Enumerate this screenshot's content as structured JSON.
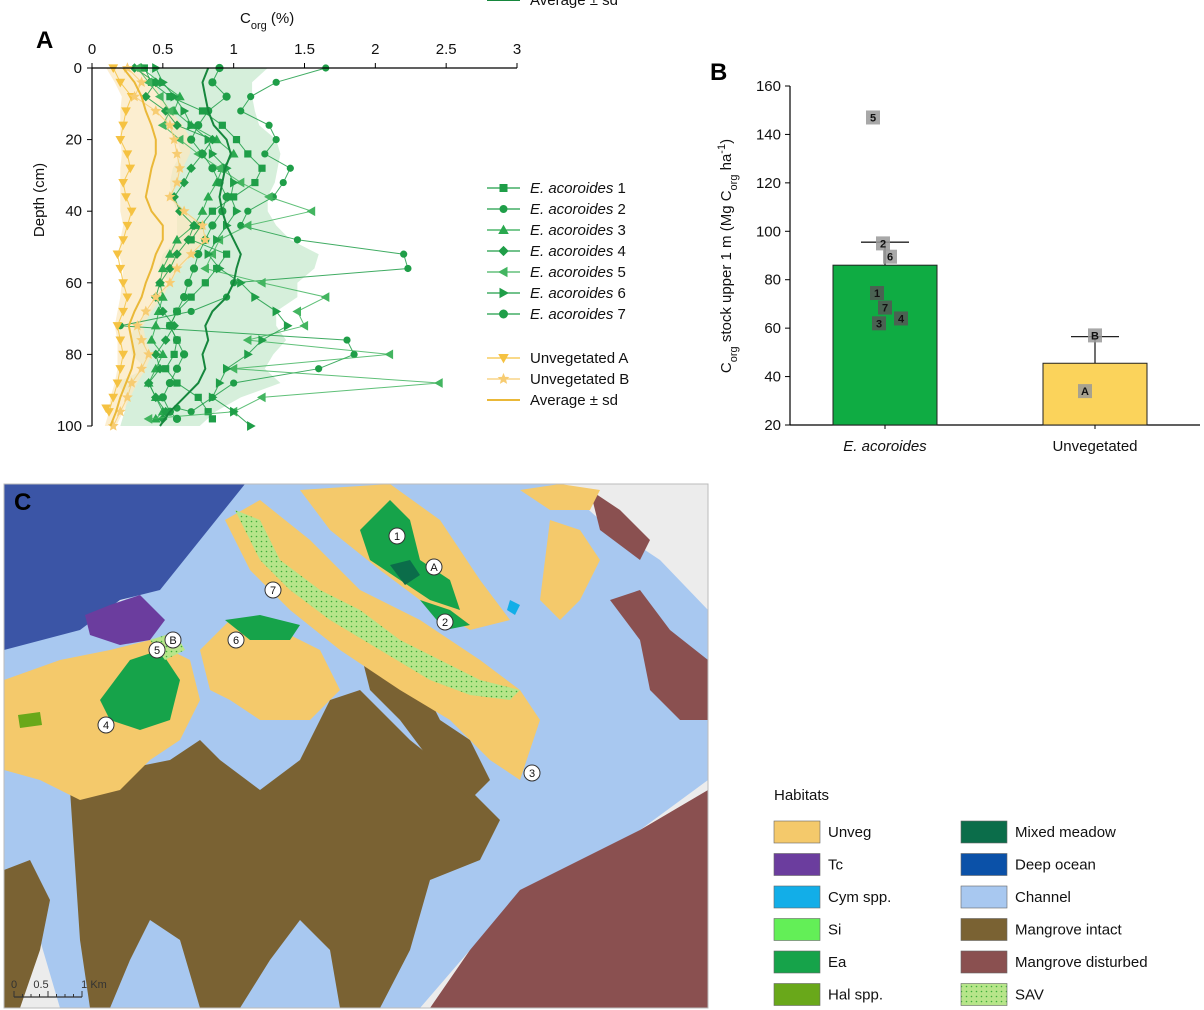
{
  "panels": {
    "a": "A",
    "b": "B",
    "c": "C"
  },
  "chart_data": [
    {
      "type": "line",
      "panel": "A",
      "title": "",
      "xlabel_main": "C",
      "xlabel_sub": "org",
      "xlabel_unit": " (%)",
      "ylabel": "Depth (cm)",
      "xlim": [
        0,
        3
      ],
      "ylim": [
        0,
        100
      ],
      "xticks": [
        "0",
        "0.5",
        "1",
        "1.5",
        "2",
        "2.5",
        "3"
      ],
      "yticks": [
        "0",
        "20",
        "40",
        "60",
        "80",
        "100"
      ],
      "depths": [
        0,
        4,
        8,
        12,
        16,
        20,
        24,
        28,
        32,
        36,
        40,
        44,
        48,
        52,
        56,
        60,
        64,
        68,
        72,
        76,
        80,
        84,
        88,
        92,
        96,
        100
      ],
      "series": [
        {
          "name": "E. acoroides",
          "num": "1",
          "marker": "square",
          "color": "#1f9e48",
          "depth_max": 98,
          "values": [
            0.37,
            0.42,
            0.55,
            0.78,
            0.92,
            1.02,
            1.1,
            1.2,
            1.15,
            1.0,
            0.85,
            0.77,
            0.7,
            0.95,
            0.88,
            0.8,
            0.7,
            0.6,
            0.55,
            0.6,
            0.58,
            0.52,
            0.6,
            0.75,
            0.82,
            0.85
          ]
        },
        {
          "name": "E. acoroides",
          "num": "2",
          "marker": "circle",
          "color": "#1f9e48",
          "depth_max": 95,
          "values": [
            1.65,
            1.3,
            1.12,
            1.05,
            1.25,
            1.3,
            1.22,
            1.4,
            1.35,
            1.28,
            1.1,
            1.05,
            1.45,
            2.2,
            2.23,
            1.0,
            0.95,
            0.7,
            0.2,
            1.8,
            1.85,
            1.6,
            1.0,
            0.85,
            0.7,
            0.6
          ]
        },
        {
          "name": "E. acoroides",
          "num": "3",
          "marker": "triangle",
          "color": "#2aa94f",
          "depth_max": 98,
          "values": [
            0.35,
            0.48,
            0.62,
            0.58,
            0.7,
            0.88,
            1.0,
            0.92,
            0.88,
            0.82,
            0.78,
            0.72,
            0.6,
            0.55,
            0.5,
            0.48,
            0.5,
            0.47,
            0.45,
            0.42,
            0.5,
            0.45,
            0.4,
            0.45,
            0.5,
            0.45
          ]
        },
        {
          "name": "E. acoroides",
          "num": "4",
          "marker": "diamond",
          "color": "#1f9e48",
          "depth_max": 98,
          "values": [
            0.3,
            0.45,
            0.38,
            0.52,
            0.6,
            0.85,
            0.78,
            0.7,
            0.65,
            0.58,
            0.62,
            0.72,
            0.68,
            0.6,
            0.55,
            0.48,
            0.45,
            0.5,
            0.58,
            0.52,
            0.45,
            0.48,
            0.4,
            0.45,
            0.52,
            0.5
          ]
        },
        {
          "name": "E. acoroides",
          "num": "5",
          "marker": "triangle-left",
          "color": "#43b560",
          "depth_max": 98,
          "values": [
            0.32,
            0.4,
            0.48,
            0.55,
            0.5,
            0.62,
            0.75,
            0.9,
            1.05,
            1.25,
            1.55,
            1.1,
            0.9,
            0.85,
            0.8,
            1.2,
            1.65,
            1.45,
            1.5,
            1.1,
            2.1,
            1.0,
            2.45,
            1.2,
            1.0,
            0.4
          ]
        },
        {
          "name": "E. acoroides",
          "num": "6",
          "marker": "triangle-right",
          "color": "#1f9e48",
          "depth_max": 100,
          "values": [
            0.45,
            0.5,
            0.58,
            0.65,
            0.7,
            0.82,
            0.85,
            0.95,
            1.0,
            0.98,
            1.02,
            0.95,
            0.88,
            0.82,
            0.9,
            1.05,
            1.15,
            1.3,
            1.38,
            1.2,
            1.1,
            0.95,
            0.9,
            0.85,
            1.0,
            1.12
          ]
        },
        {
          "name": "E. acoroides",
          "num": "7",
          "marker": "pentagon",
          "color": "#1f9e48",
          "depth_max": 98,
          "values": [
            0.9,
            0.85,
            0.95,
            0.82,
            0.75,
            0.7,
            0.78,
            0.85,
            0.9,
            0.95,
            0.92,
            0.85,
            0.8,
            0.75,
            0.72,
            0.68,
            0.65,
            0.6,
            0.55,
            0.6,
            0.65,
            0.6,
            0.55,
            0.5,
            0.55,
            0.6
          ]
        },
        {
          "name": "Average ± sd",
          "marker": "none",
          "color": "#16873d",
          "sd_color": "#c8e9cf",
          "depth_max": 100,
          "values": [
            0.82,
            0.78,
            0.8,
            0.82,
            0.86,
            0.95,
            0.98,
            0.94,
            0.92,
            0.9,
            0.92,
            0.95,
            1.0,
            1.05,
            1.02,
            1.0,
            0.95,
            0.85,
            0.8,
            0.82,
            0.78,
            0.8,
            0.75,
            0.65,
            0.55,
            0.48
          ],
          "sd": [
            0.42,
            0.35,
            0.33,
            0.33,
            0.32,
            0.35,
            0.35,
            0.37,
            0.37,
            0.34,
            0.32,
            0.35,
            0.4,
            0.55,
            0.55,
            0.45,
            0.5,
            0.45,
            0.5,
            0.55,
            0.5,
            0.42,
            0.58,
            0.4,
            0.32,
            0.28
          ]
        },
        {
          "name": "Unvegetated A",
          "marker": "triangle-down",
          "color": "#f5c242",
          "depth_max": 95,
          "values": [
            0.15,
            0.2,
            0.28,
            0.24,
            0.22,
            0.2,
            0.25,
            0.27,
            0.22,
            0.24,
            0.28,
            0.25,
            0.22,
            0.18,
            0.2,
            0.22,
            0.25,
            0.22,
            0.18,
            0.2,
            0.22,
            0.2,
            0.18,
            0.15,
            0.12,
            0.1
          ]
        },
        {
          "name": "Unvegetated B",
          "marker": "star",
          "color": "#f7cc72",
          "depth_max": 100,
          "values": [
            0.25,
            0.35,
            0.3,
            0.45,
            0.55,
            0.58,
            0.6,
            0.62,
            0.6,
            0.55,
            0.65,
            0.78,
            0.8,
            0.7,
            0.6,
            0.55,
            0.45,
            0.38,
            0.32,
            0.35,
            0.4,
            0.35,
            0.28,
            0.25,
            0.2,
            0.15
          ]
        },
        {
          "name": "Average ± sd",
          "marker": "none",
          "color": "#eab838",
          "sd_color": "#fbe8c0",
          "depth_max": 100,
          "values": [
            0.22,
            0.3,
            0.35,
            0.38,
            0.42,
            0.45,
            0.45,
            0.42,
            0.4,
            0.38,
            0.42,
            0.5,
            0.5,
            0.45,
            0.42,
            0.38,
            0.35,
            0.3,
            0.26,
            0.28,
            0.3,
            0.28,
            0.24,
            0.2,
            0.17,
            0.13
          ],
          "sd": [
            0.12,
            0.14,
            0.14,
            0.18,
            0.22,
            0.25,
            0.24,
            0.22,
            0.2,
            0.18,
            0.22,
            0.28,
            0.3,
            0.26,
            0.2,
            0.17,
            0.15,
            0.12,
            0.1,
            0.1,
            0.12,
            0.1,
            0.08,
            0.07,
            0.05,
            0.04
          ]
        }
      ]
    },
    {
      "type": "bar",
      "panel": "B",
      "title": "",
      "ylabel_main": "C",
      "ylabel_sub": "org",
      "ylabel_mid": " stock upper 1 m (Mg C",
      "ylabel_sub2": "org",
      "ylabel_mid2": " ha",
      "ylabel_sup": "-1",
      "ylabel_end": ")",
      "ylim": [
        20,
        160
      ],
      "yticks": [
        "20",
        "40",
        "60",
        "80",
        "100",
        "120",
        "140",
        "160"
      ],
      "categories": [
        "E. acoroides",
        "Unvegetated"
      ],
      "values": [
        86,
        45.5
      ],
      "error_sd": [
        9.5,
        11
      ],
      "colors": [
        "#0fac43",
        "#fbd35b"
      ],
      "points": [
        [
          {
            "label": "5",
            "value": 147
          },
          {
            "label": "2",
            "value": 95
          },
          {
            "label": "6",
            "value": 89.5
          },
          {
            "label": "1",
            "value": 74.5
          },
          {
            "label": "7",
            "value": 68.5
          },
          {
            "label": "4",
            "value": 64
          },
          {
            "label": "3",
            "value": 62
          }
        ],
        [
          {
            "label": "B",
            "value": 57
          },
          {
            "label": "A",
            "value": 34
          }
        ]
      ]
    }
  ],
  "map": {
    "sites": [
      "1",
      "A",
      "2",
      "7",
      "6",
      "5",
      "B",
      "4",
      "3"
    ],
    "scale": {
      "ticks": [
        "0",
        "0.5",
        "1 Km"
      ]
    },
    "legend_title": "Habitats",
    "legend": [
      {
        "label": "Unveg",
        "color": "#f4c96b"
      },
      {
        "label": "Tc",
        "color": "#6b3d9e"
      },
      {
        "label": "Cym spp.",
        "color": "#12aee8"
      },
      {
        "label": "Si",
        "color": "#63ef57"
      },
      {
        "label": "Ea",
        "color": "#16a34a"
      },
      {
        "label": "Hal spp.",
        "color": "#69a81a"
      },
      {
        "label": "Mixed meadow",
        "color": "#0b6d4a"
      },
      {
        "label": "Deep ocean",
        "color": "#0b51a8"
      },
      {
        "label": "Channel",
        "color": "#a8c8f0"
      },
      {
        "label": "Mangrove intact",
        "color": "#7a6233"
      },
      {
        "label": "Mangrove disturbed",
        "color": "#8a5050"
      },
      {
        "label": "SAV",
        "color": "#b7e58a"
      }
    ]
  }
}
